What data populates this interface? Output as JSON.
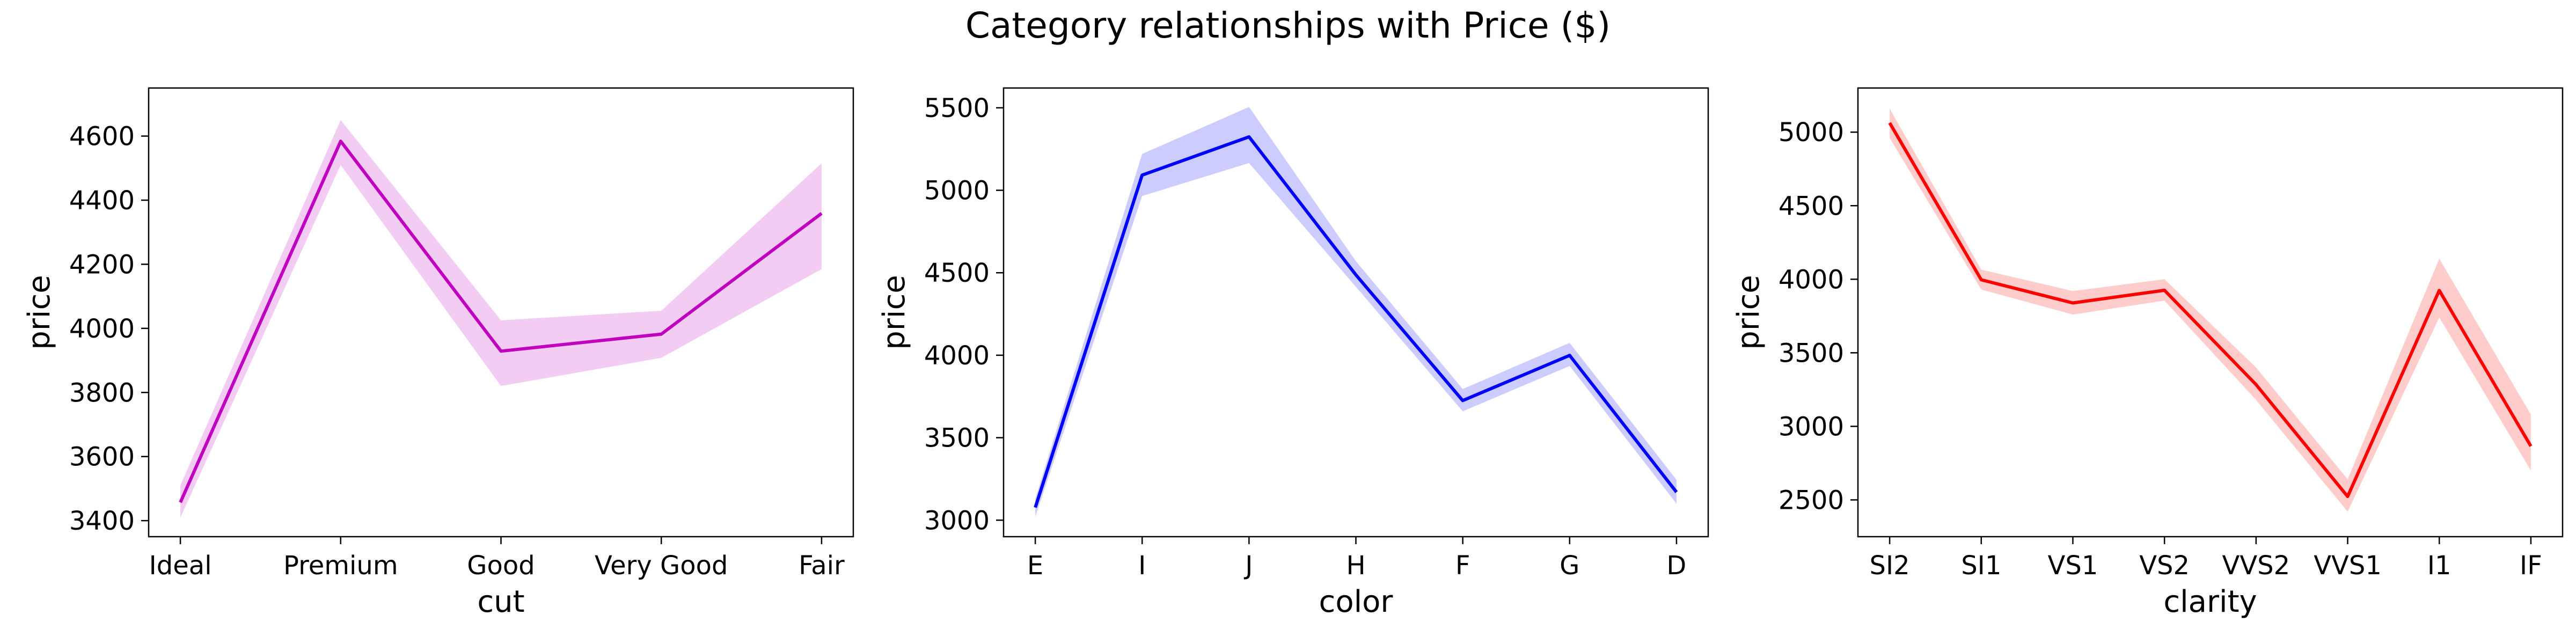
{
  "figure": {
    "title": "Category relationships with Price ($)"
  },
  "chart_data": [
    {
      "type": "line",
      "xlabel": "cut",
      "ylabel": "price",
      "categories": [
        "Ideal",
        "Premium",
        "Good",
        "Very Good",
        "Fair"
      ],
      "values": [
        3457,
        4584,
        3929,
        3982,
        4359
      ],
      "ci_low": [
        3410,
        4510,
        3820,
        3908,
        4185
      ],
      "ci_high": [
        3510,
        4650,
        4025,
        4055,
        4515
      ],
      "ylim": [
        3350,
        4750
      ],
      "yticks": [
        3400,
        3600,
        3800,
        4000,
        4200,
        4400,
        4600
      ],
      "color": "#bf00bf",
      "band_color": "#bf00bf"
    },
    {
      "type": "line",
      "xlabel": "color",
      "ylabel": "price",
      "categories": [
        "E",
        "I",
        "J",
        "H",
        "F",
        "G",
        "D"
      ],
      "values": [
        3077,
        5092,
        5324,
        4487,
        3725,
        3999,
        3170
      ],
      "ci_low": [
        3020,
        4965,
        5165,
        4415,
        3660,
        3935,
        3100
      ],
      "ci_high": [
        3130,
        5220,
        5505,
        4570,
        3795,
        4075,
        3245
      ],
      "ylim": [
        2900,
        5620
      ],
      "yticks": [
        3000,
        3500,
        4000,
        4500,
        5000,
        5500
      ],
      "color": "#0000ff",
      "band_color": "#0000ff"
    },
    {
      "type": "line",
      "xlabel": "clarity",
      "ylabel": "price",
      "categories": [
        "SI2",
        "SI1",
        "VS1",
        "VS2",
        "VVS2",
        "VVS1",
        "I1",
        "IF"
      ],
      "values": [
        5063,
        3996,
        3839,
        3925,
        3284,
        2523,
        3924,
        2865
      ],
      "ci_low": [
        4960,
        3930,
        3760,
        3855,
        3180,
        2420,
        3740,
        2700
      ],
      "ci_high": [
        5160,
        4065,
        3920,
        4000,
        3400,
        2640,
        4140,
        3080
      ],
      "ylim": [
        2250,
        5300
      ],
      "yticks": [
        2500,
        3000,
        3500,
        4000,
        4500,
        5000
      ],
      "color": "#ff0000",
      "band_color": "#ff0000"
    }
  ]
}
